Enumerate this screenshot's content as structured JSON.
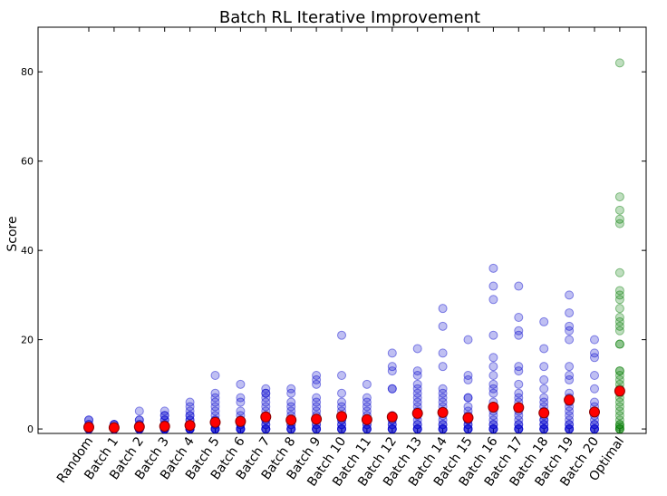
{
  "chart_data": {
    "type": "scatter",
    "title": "Batch RL Iterative Improvement",
    "xlabel": "",
    "ylabel": "Score",
    "ylim": [
      -1,
      90
    ],
    "yticks": [
      0,
      20,
      40,
      60,
      80
    ],
    "grid": false,
    "legend": "none",
    "categories": [
      "Random",
      "Batch 1",
      "Batch 2",
      "Batch 3",
      "Batch 4",
      "Batch 5",
      "Batch 6",
      "Batch 7",
      "Batch 8",
      "Batch 9",
      "Batch 10",
      "Batch 11",
      "Batch 12",
      "Batch 13",
      "Batch 14",
      "Batch 15",
      "Batch 16",
      "Batch 17",
      "Batch 18",
      "Batch 19",
      "Batch 20",
      "Optimal"
    ],
    "colors": {
      "samples": "#0000cc",
      "optimal_samples": "#007a00",
      "mean": "#ff0000",
      "mean_edge": "#8b0000"
    },
    "samples": [
      [
        0,
        0,
        0,
        0,
        0.5,
        1,
        1,
        2,
        2,
        0,
        0.5
      ],
      [
        0,
        0,
        0,
        0,
        0,
        0.5,
        1,
        1,
        1,
        0,
        0
      ],
      [
        0,
        0,
        0,
        0,
        0,
        0.5,
        1,
        1,
        2,
        2,
        4,
        0,
        0
      ],
      [
        0,
        0,
        0,
        0,
        0,
        1,
        1,
        2,
        2,
        3,
        3,
        4,
        0,
        0
      ],
      [
        0,
        0,
        0,
        0,
        0,
        1,
        1,
        2,
        2,
        3,
        3,
        4,
        5,
        6,
        0
      ],
      [
        0,
        0,
        0,
        0,
        1,
        1,
        2,
        2,
        3,
        4,
        5,
        6,
        7,
        8,
        12,
        0
      ],
      [
        0,
        0,
        0,
        0,
        1,
        1,
        2,
        2,
        3,
        4,
        6,
        7,
        10,
        0
      ],
      [
        0,
        0,
        0,
        1,
        1,
        2,
        2,
        3,
        4,
        5,
        6,
        7,
        8,
        8,
        9,
        0
      ],
      [
        0,
        0,
        0,
        1,
        1,
        2,
        2,
        3,
        4,
        5,
        6,
        8,
        9,
        0
      ],
      [
        0,
        0,
        0,
        1,
        1,
        2,
        2,
        3,
        4,
        5,
        6,
        7,
        10,
        11,
        12,
        0
      ],
      [
        0,
        0,
        0,
        1,
        1,
        2,
        2,
        3,
        4,
        5,
        6,
        8,
        12,
        21,
        0
      ],
      [
        0,
        0,
        0,
        1,
        1,
        2,
        2,
        3,
        4,
        5,
        6,
        7,
        10,
        0
      ],
      [
        0,
        0,
        0,
        1,
        1,
        2,
        2,
        3,
        9,
        9,
        13,
        14,
        17,
        0
      ],
      [
        0,
        0,
        0,
        1,
        1,
        2,
        3,
        4,
        5,
        6,
        7,
        8,
        9,
        10,
        12,
        13,
        18,
        0
      ],
      [
        0,
        0,
        0,
        1,
        1,
        2,
        3,
        4,
        5,
        6,
        7,
        8,
        9,
        14,
        17,
        23,
        27,
        0
      ],
      [
        0,
        0,
        0,
        1,
        1,
        2,
        2,
        3,
        4,
        5,
        7,
        7,
        11,
        12,
        20,
        0
      ],
      [
        0,
        0,
        0,
        1,
        1,
        2,
        3,
        4,
        5,
        6,
        8,
        9,
        10,
        12,
        14,
        16,
        21,
        29,
        32,
        36,
        0
      ],
      [
        0,
        0,
        0,
        1,
        1,
        2,
        3,
        4,
        5,
        6,
        7,
        8,
        10,
        13,
        14,
        21,
        22,
        25,
        32,
        0
      ],
      [
        0,
        0,
        0,
        1,
        1,
        2,
        2,
        3,
        4,
        5,
        6,
        7,
        9,
        11,
        14,
        18,
        24,
        0
      ],
      [
        0,
        0,
        0,
        1,
        1,
        2,
        3,
        4,
        5,
        6,
        7,
        8,
        11,
        12,
        14,
        20,
        22,
        23,
        26,
        30,
        0
      ],
      [
        0,
        0,
        0,
        1,
        1,
        2,
        3,
        4,
        5,
        6,
        9,
        12,
        16,
        17,
        20,
        0
      ],
      [
        0,
        0,
        0,
        0.5,
        1,
        1,
        2,
        3,
        4,
        5,
        6,
        7,
        8,
        9,
        10,
        11,
        12,
        13,
        13,
        19,
        19,
        22,
        23,
        24,
        25,
        27,
        29,
        30,
        31,
        35,
        46,
        47,
        49,
        52,
        82
      ]
    ],
    "means": [
      0.4,
      0.3,
      0.5,
      0.6,
      0.8,
      1.5,
      1.7,
      2.7,
      2.0,
      2.2,
      2.8,
      2.1,
      2.7,
      3.5,
      3.7,
      2.5,
      4.9,
      4.8,
      3.6,
      6.5,
      3.8,
      8.5
    ]
  }
}
